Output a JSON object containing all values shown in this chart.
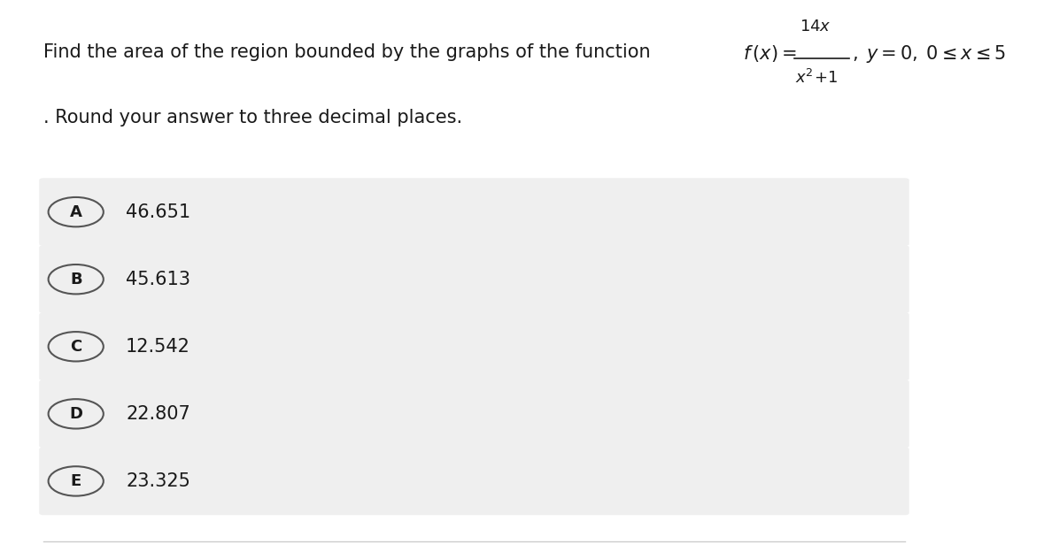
{
  "title_line1": "Find the area of the region bounded by the graphs of the function",
  "title_line2": ". Round your answer to three decimal places.",
  "options": [
    {
      "letter": "A",
      "value": "46.651"
    },
    {
      "letter": "B",
      "value": "45.613"
    },
    {
      "letter": "C",
      "value": "12.542"
    },
    {
      "letter": "D",
      "value": "22.807"
    },
    {
      "letter": "E",
      "value": "23.325"
    }
  ],
  "bg_color": "#ffffff",
  "option_bg_color": "#efefef",
  "text_color": "#1a1a1a",
  "circle_edge_color": "#555555",
  "fig_width": 11.79,
  "fig_height": 6.24,
  "bottom_line_color": "#cccccc"
}
